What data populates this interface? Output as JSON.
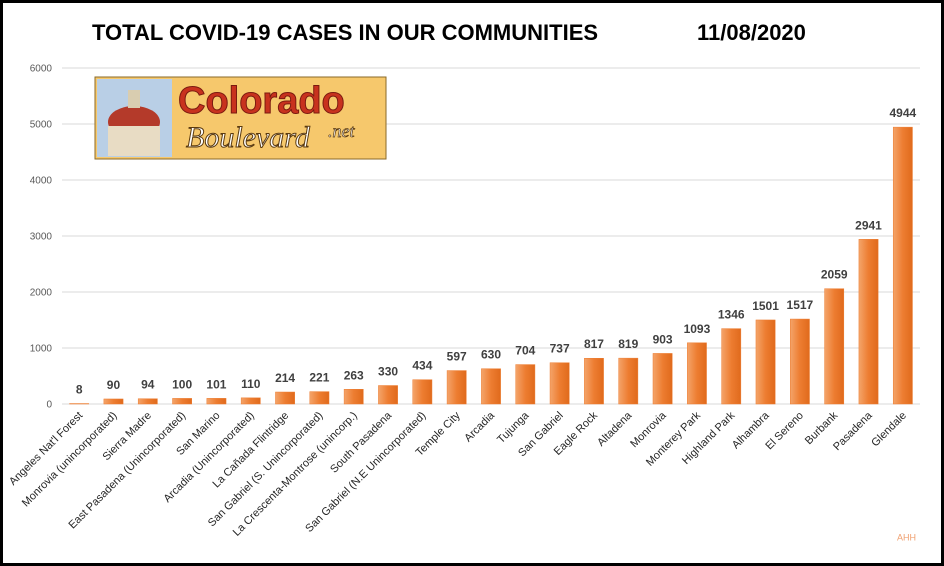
{
  "chart_data": {
    "type": "bar",
    "title": "TOTAL COVID-19 CASES IN OUR COMMUNITIES",
    "subtitle": "11/08/2020",
    "categories": [
      "Angeles Nat'l Forest",
      "Monrovia (unincorporated)",
      "Sierra Madre",
      "East Pasadena (Unincorporated)",
      "San Marino",
      "Arcadia (Unincorporated)",
      "La Cañada Flintridge",
      "San Gabriel (S. Unincorporated)",
      "La Crescenta-Montrose (unincorp.)",
      "South Pasadena",
      "San Gabriel (N.E Unincorporated)",
      "Temple City",
      "Arcadia",
      "Tujunga",
      "San Gabriel",
      "Eagle Rock",
      "Altadena",
      "Monrovia",
      "Monterey Park",
      "Highland Park",
      "Alhambra",
      "El Sereno",
      "Burbank",
      "Pasadena",
      "Glendale"
    ],
    "values": [
      8,
      90,
      94,
      100,
      101,
      110,
      214,
      221,
      263,
      330,
      434,
      597,
      630,
      704,
      737,
      817,
      819,
      903,
      1093,
      1346,
      1501,
      1517,
      2059,
      2941,
      4944
    ],
    "color": "#ed7d31",
    "ylim": [
      0,
      6000
    ],
    "yticks": [
      0,
      1000,
      2000,
      3000,
      4000,
      5000,
      6000
    ],
    "grid": true
  },
  "logo": {
    "line1": "Colorado",
    "line2": "Boulevard",
    "line3": ".net"
  },
  "credit": "AHH"
}
